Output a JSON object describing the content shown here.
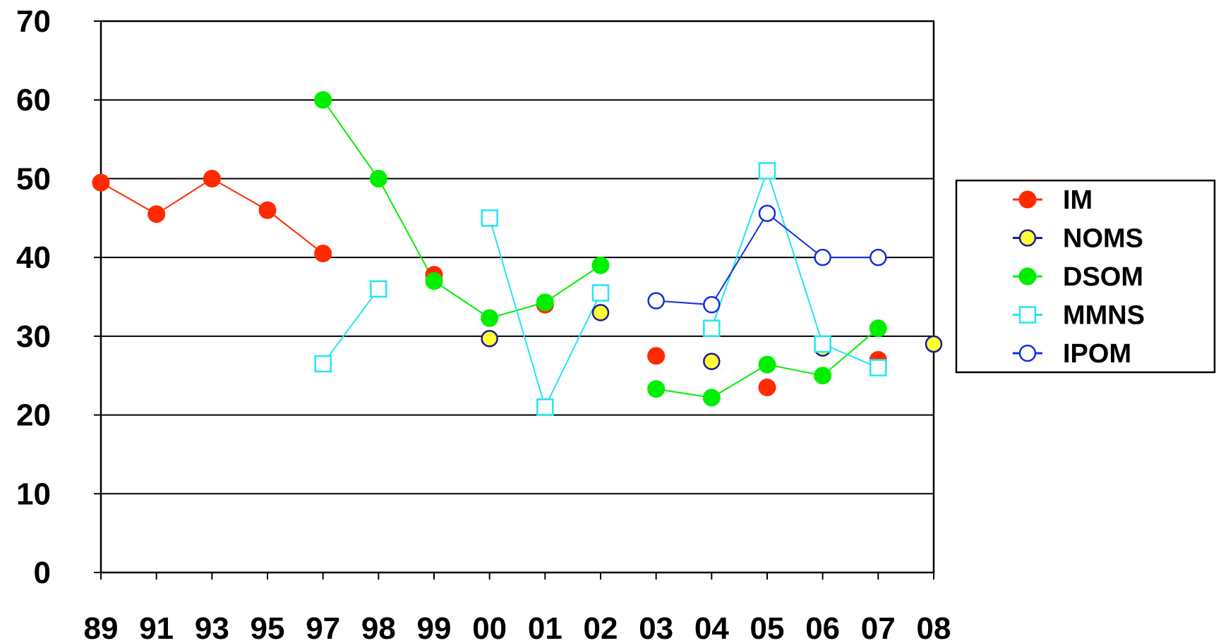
{
  "chart_data": {
    "type": "line",
    "title": "",
    "xlabel": "",
    "ylabel": "",
    "categories": [
      "89",
      "91",
      "93",
      "95",
      "97",
      "98",
      "99",
      "00",
      "01",
      "02",
      "03",
      "04",
      "05",
      "06",
      "07",
      "08"
    ],
    "ylim": [
      0,
      70
    ],
    "yticks": [
      0,
      10,
      20,
      30,
      40,
      50,
      60,
      70
    ],
    "grid": true,
    "legend_position": "right",
    "series": [
      {
        "name": "IM",
        "color": "#ff2a00",
        "marker": "filled-circle",
        "values": [
          49.5,
          45.5,
          50,
          46,
          40.5,
          null,
          37.8,
          null,
          34,
          null,
          27.5,
          null,
          23.5,
          null,
          27,
          null
        ],
        "connected_segments": [
          [
            0,
            4
          ]
        ]
      },
      {
        "name": "NOMS",
        "color": "#1a1a99",
        "fill": "#ffff33",
        "marker": "circle-yellow",
        "values": [
          null,
          null,
          null,
          null,
          null,
          null,
          null,
          29.7,
          null,
          33,
          null,
          26.8,
          null,
          28.5,
          null,
          29
        ]
      },
      {
        "name": "DSOM",
        "color": "#00ee00",
        "marker": "filled-circle",
        "values": [
          null,
          null,
          null,
          null,
          60,
          50,
          37,
          32.3,
          34.3,
          39,
          23.3,
          22.2,
          26.4,
          25,
          31,
          null
        ],
        "connected_segments": [
          [
            4,
            9
          ],
          [
            10,
            14
          ]
        ]
      },
      {
        "name": "MMNS",
        "color": "#22e5f2",
        "marker": "open-square",
        "values": [
          null,
          null,
          null,
          null,
          26.5,
          36,
          null,
          45,
          21,
          35.5,
          null,
          31,
          51,
          29,
          26,
          null
        ],
        "connected_segments": [
          [
            4,
            5
          ],
          [
            7,
            9
          ],
          [
            11,
            14
          ]
        ]
      },
      {
        "name": "IPOM",
        "color": "#1030e0",
        "marker": "open-circle",
        "values": [
          null,
          null,
          null,
          null,
          null,
          null,
          null,
          null,
          null,
          null,
          34.5,
          34,
          45.6,
          40,
          40,
          null
        ],
        "connected_segments": [
          [
            10,
            14
          ]
        ]
      }
    ]
  }
}
